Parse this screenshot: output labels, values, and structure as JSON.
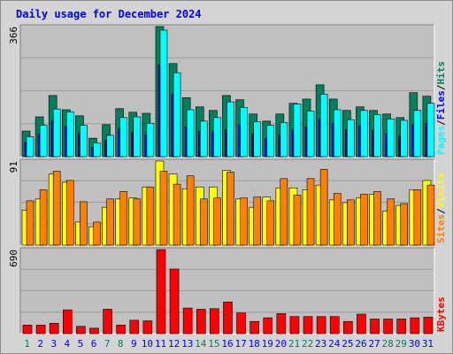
{
  "title": "Daily usage for December 2024",
  "colors": {
    "hits": "#00805c",
    "files": "#0000ff",
    "pages": "#00ffff",
    "visits": "#ffff00",
    "sites": "#ff8000",
    "kbytes": "#ff0000",
    "title": "#0000ff",
    "weekend": "#00805c",
    "weekday": "#0000ff",
    "panel": "#c0c0c0",
    "background": "#d4d4d4"
  },
  "chart_data": [
    {
      "type": "bar",
      "title": "Daily usage for December 2024",
      "ymax_label": "366",
      "ylim": [
        0,
        366
      ],
      "categories": [
        "1",
        "2",
        "3",
        "4",
        "5",
        "6",
        "7",
        "8",
        "9",
        "10",
        "11",
        "12",
        "13",
        "14",
        "15",
        "16",
        "17",
        "18",
        "19",
        "20",
        "21",
        "22",
        "23",
        "24",
        "25",
        "26",
        "27",
        "28",
        "29",
        "30",
        "31"
      ],
      "weekend_days": [
        "1",
        "7",
        "8",
        "14",
        "15",
        "21",
        "22",
        "28",
        "29"
      ],
      "legend": [
        {
          "label": "Hits",
          "color": "#00805c"
        },
        {
          "label": "Files",
          "color": "#0000ff"
        },
        {
          "label": "Pages",
          "color": "#00ffff"
        }
      ],
      "series": [
        {
          "name": "Hits",
          "values": [
            72,
            112,
            172,
            132,
            115,
            52,
            90,
            135,
            125,
            122,
            366,
            262,
            166,
            140,
            130,
            172,
            160,
            120,
            100,
            120,
            150,
            162,
            202,
            162,
            130,
            140,
            130,
            120,
            110,
            180,
            170
          ]
        },
        {
          "name": "Files",
          "values": [
            40,
            64,
            100,
            86,
            65,
            26,
            46,
            78,
            68,
            62,
            258,
            176,
            84,
            72,
            70,
            76,
            90,
            64,
            52,
            60,
            74,
            84,
            106,
            94,
            76,
            86,
            74,
            64,
            58,
            90,
            94
          ]
        },
        {
          "name": "Pages",
          "values": [
            56,
            88,
            134,
            126,
            88,
            38,
            60,
            110,
            112,
            94,
            356,
            236,
            132,
            100,
            110,
            154,
            138,
            98,
            88,
            96,
            148,
            128,
            176,
            132,
            104,
            130,
            118,
            106,
            102,
            130,
            150
          ]
        }
      ]
    },
    {
      "type": "bar",
      "ymax_label": "91",
      "ylim": [
        0,
        91
      ],
      "categories": [
        "1",
        "2",
        "3",
        "4",
        "5",
        "6",
        "7",
        "8",
        "9",
        "10",
        "11",
        "12",
        "13",
        "14",
        "15",
        "16",
        "17",
        "18",
        "19",
        "20",
        "21",
        "22",
        "23",
        "24",
        "25",
        "26",
        "27",
        "28",
        "29",
        "30",
        "31"
      ],
      "legend": [
        {
          "label": "Visits",
          "color": "#ffff00"
        },
        {
          "label": "Sites",
          "color": "#ff8000"
        }
      ],
      "series": [
        {
          "name": "Visits",
          "values": [
            38,
            50,
            77,
            68,
            25,
            20,
            41,
            50,
            51,
            63,
            91,
            77,
            61,
            63,
            63,
            81,
            50,
            41,
            52,
            62,
            62,
            60,
            65,
            49,
            46,
            51,
            55,
            37,
            43,
            60,
            70
          ]
        },
        {
          "name": "Sites",
          "values": [
            48,
            60,
            80,
            70,
            47,
            25,
            50,
            58,
            50,
            63,
            80,
            66,
            75,
            50,
            51,
            79,
            51,
            52,
            48,
            72,
            54,
            72,
            82,
            56,
            49,
            55,
            58,
            50,
            45,
            60,
            65
          ]
        }
      ]
    },
    {
      "type": "bar",
      "ymax_label": "690",
      "ylim": [
        0,
        690
      ],
      "categories": [
        "1",
        "2",
        "3",
        "4",
        "5",
        "6",
        "7",
        "8",
        "9",
        "10",
        "11",
        "12",
        "13",
        "14",
        "15",
        "16",
        "17",
        "18",
        "19",
        "20",
        "21",
        "22",
        "23",
        "24",
        "25",
        "26",
        "27",
        "28",
        "29",
        "30",
        "31"
      ],
      "legend": [
        {
          "label": "KBytes",
          "color": "#ff0000"
        }
      ],
      "series": [
        {
          "name": "KBytes",
          "values": [
            70,
            70,
            85,
            195,
            60,
            45,
            200,
            70,
            110,
            105,
            690,
            530,
            210,
            200,
            205,
            260,
            170,
            100,
            130,
            165,
            140,
            140,
            140,
            140,
            100,
            160,
            120,
            120,
            120,
            130,
            135
          ]
        }
      ]
    }
  ]
}
